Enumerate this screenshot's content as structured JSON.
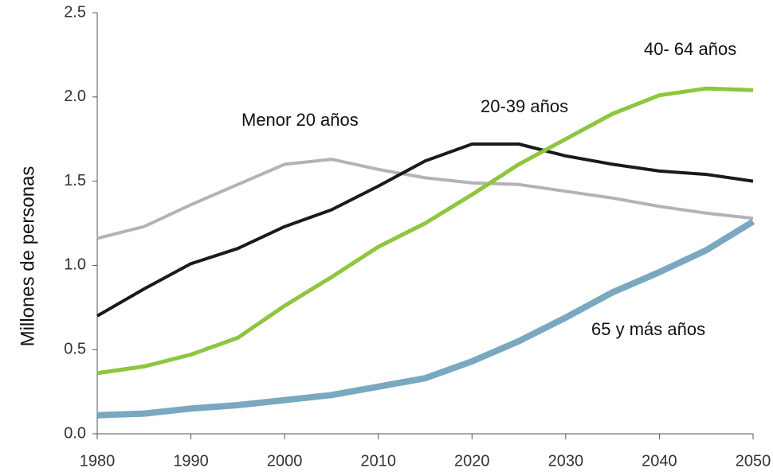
{
  "chart_data": {
    "type": "line",
    "y_label": "Millones de personas",
    "x": [
      1980,
      1985,
      1990,
      1995,
      2000,
      2005,
      2010,
      2015,
      2020,
      2025,
      2030,
      2035,
      2040,
      2045,
      2050
    ],
    "series": [
      {
        "name": "Menor 20 años",
        "color": "#b3b3b3",
        "values": [
          1.16,
          1.23,
          1.36,
          1.48,
          1.6,
          1.63,
          1.57,
          1.52,
          1.49,
          1.48,
          1.44,
          1.4,
          1.35,
          1.31,
          1.28
        ]
      },
      {
        "name": "20-39 años",
        "color": "#1a1a1a",
        "values": [
          0.7,
          0.86,
          1.01,
          1.1,
          1.23,
          1.33,
          1.47,
          1.62,
          1.72,
          1.72,
          1.65,
          1.6,
          1.56,
          1.54,
          1.5
        ]
      },
      {
        "name": "40- 64 años",
        "color": "#8dc63f",
        "values": [
          0.36,
          0.4,
          0.47,
          0.57,
          0.76,
          0.93,
          1.11,
          1.25,
          1.42,
          1.6,
          1.75,
          1.9,
          2.01,
          2.05,
          2.04
        ]
      },
      {
        "name": "65 y más años",
        "color": "#7aa8c0",
        "values": [
          0.11,
          0.12,
          0.15,
          0.17,
          0.2,
          0.23,
          0.28,
          0.33,
          0.43,
          0.55,
          0.69,
          0.84,
          0.96,
          1.09,
          1.26
        ]
      }
    ],
    "xlim": [
      1980,
      2050
    ],
    "xticks": [
      1980,
      1990,
      2000,
      2010,
      2020,
      2030,
      2040,
      2050
    ],
    "ylim": [
      0,
      2.5
    ],
    "yticks": [
      {
        "value": 0,
        "label": "0.0"
      },
      0.5,
      {
        "value": 1,
        "label": "1.0"
      },
      1.5,
      {
        "value": 2,
        "label": "2.0"
      },
      2.5
    ],
    "grid": false
  }
}
